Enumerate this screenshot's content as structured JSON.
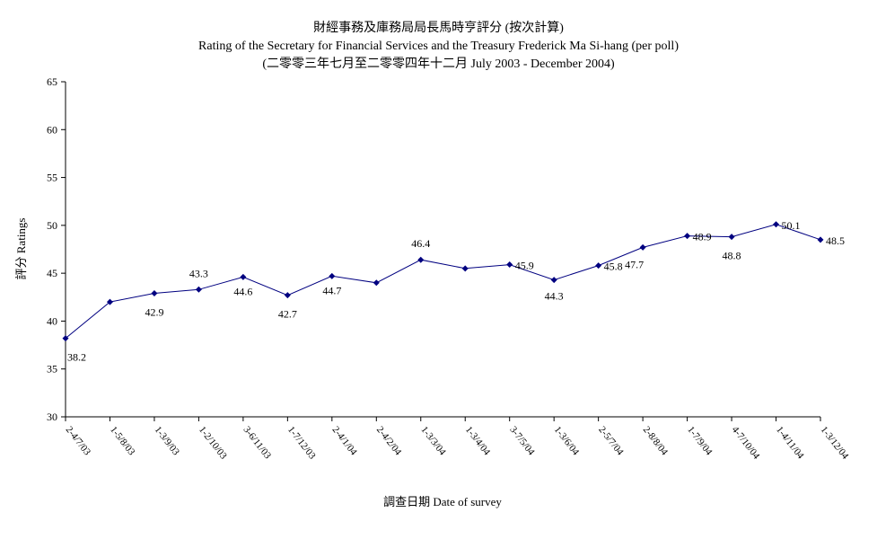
{
  "chart_data": {
    "type": "line",
    "title_zh": "財經事務及庫務局局長馬時亨評分 (按次計算)",
    "title_en": "Rating of the Secretary for Financial Services and the Treasury Frederick Ma Si-hang  (per poll)",
    "subtitle": "(二零零三年七月至二零零四年十二月 July 2003 - December 2004)",
    "xlabel": "調查日期 Date of survey",
    "ylabel": "評分 Ratings",
    "ylim": [
      30,
      65
    ],
    "yticks": [
      "30",
      "35",
      "40",
      "45",
      "50",
      "55",
      "60",
      "65"
    ],
    "grid": false,
    "categories": [
      "2-4/7/03",
      "1-5/8/03",
      "1-3/9/03",
      "1-2/10/03",
      "3-6/11/03",
      "1-7/12/03",
      "2-4/1/04",
      "2-4/2/04",
      "1-3/3/04",
      "1-3/4/04",
      "3-7/5/04",
      "1-3/6/04",
      "2-5/7/04",
      "2-8/8/04",
      "1-7/9/04",
      "4-7/10/04",
      "1-4/11/04",
      "1-3/12/04"
    ],
    "values": [
      38.2,
      42.0,
      42.9,
      43.3,
      44.6,
      42.7,
      44.7,
      44.0,
      46.4,
      45.5,
      45.9,
      44.3,
      45.8,
      47.7,
      48.9,
      48.8,
      50.1,
      48.5
    ],
    "labels": [
      "38.2",
      "",
      "42.9",
      "43.3",
      "44.6",
      "42.7",
      "44.7",
      "",
      "46.4",
      "",
      "45.9",
      "44.3",
      "45.8",
      "47.7",
      "48.9",
      "48.8",
      "50.1",
      "48.5"
    ],
    "series_color": "#000080"
  }
}
